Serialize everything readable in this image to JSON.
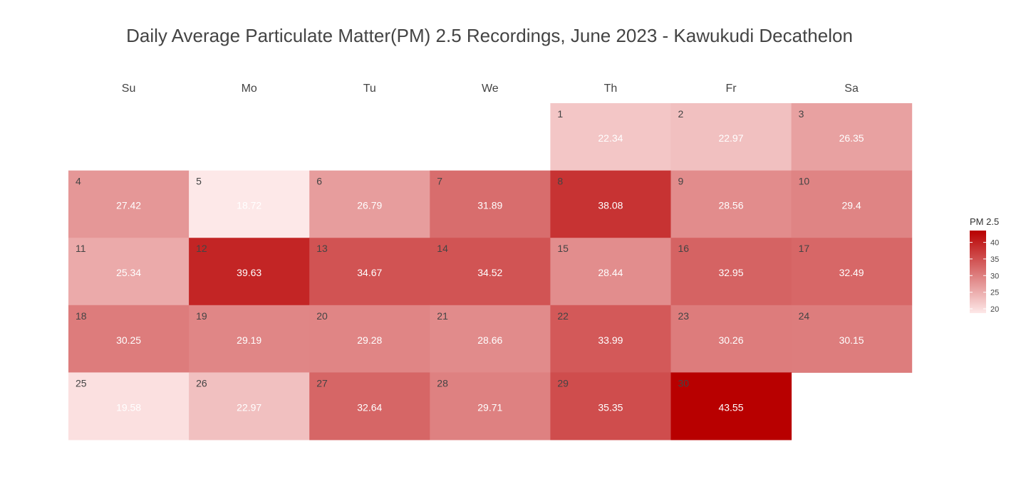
{
  "chart_data": {
    "type": "heatmap",
    "title": "Daily Average Particulate Matter(PM) 2.5 Recordings, June 2023 - Kawukudi Decathelon",
    "weekdays": [
      "Su",
      "Mo",
      "Tu",
      "We",
      "Th",
      "Fr",
      "Sa"
    ],
    "first_weekday_index": 4,
    "days": [
      {
        "day": "1",
        "value": 22.34
      },
      {
        "day": "2",
        "value": 22.97
      },
      {
        "day": "3",
        "value": 26.35
      },
      {
        "day": "4",
        "value": 27.42
      },
      {
        "day": "5",
        "value": 18.72
      },
      {
        "day": "6",
        "value": 26.79
      },
      {
        "day": "7",
        "value": 31.89
      },
      {
        "day": "8",
        "value": 38.08
      },
      {
        "day": "9",
        "value": 28.56
      },
      {
        "day": "10",
        "value": 29.4
      },
      {
        "day": "11",
        "value": 25.34
      },
      {
        "day": "12",
        "value": 39.63
      },
      {
        "day": "13",
        "value": 34.67
      },
      {
        "day": "14",
        "value": 34.52
      },
      {
        "day": "15",
        "value": 28.44
      },
      {
        "day": "16",
        "value": 32.95
      },
      {
        "day": "17",
        "value": 32.49
      },
      {
        "day": "18",
        "value": 30.25
      },
      {
        "day": "19",
        "value": 29.19
      },
      {
        "day": "20",
        "value": 29.28
      },
      {
        "day": "21",
        "value": 28.66
      },
      {
        "day": "22",
        "value": 33.99
      },
      {
        "day": "23",
        "value": 30.26
      },
      {
        "day": "24",
        "value": 30.15
      },
      {
        "day": "25",
        "value": 19.58
      },
      {
        "day": "26",
        "value": 22.97
      },
      {
        "day": "27",
        "value": 32.64
      },
      {
        "day": "28",
        "value": 29.71
      },
      {
        "day": "29",
        "value": 35.35
      },
      {
        "day": "30",
        "value": 43.55
      }
    ],
    "color_scale": {
      "low_color": "#fde8e8",
      "high_color": "#b80000",
      "min": 18.72,
      "max": 43.55
    },
    "legend": {
      "title": "PM 2.5",
      "ticks": [
        20,
        25,
        30,
        35,
        40
      ],
      "placement": "right"
    }
  }
}
